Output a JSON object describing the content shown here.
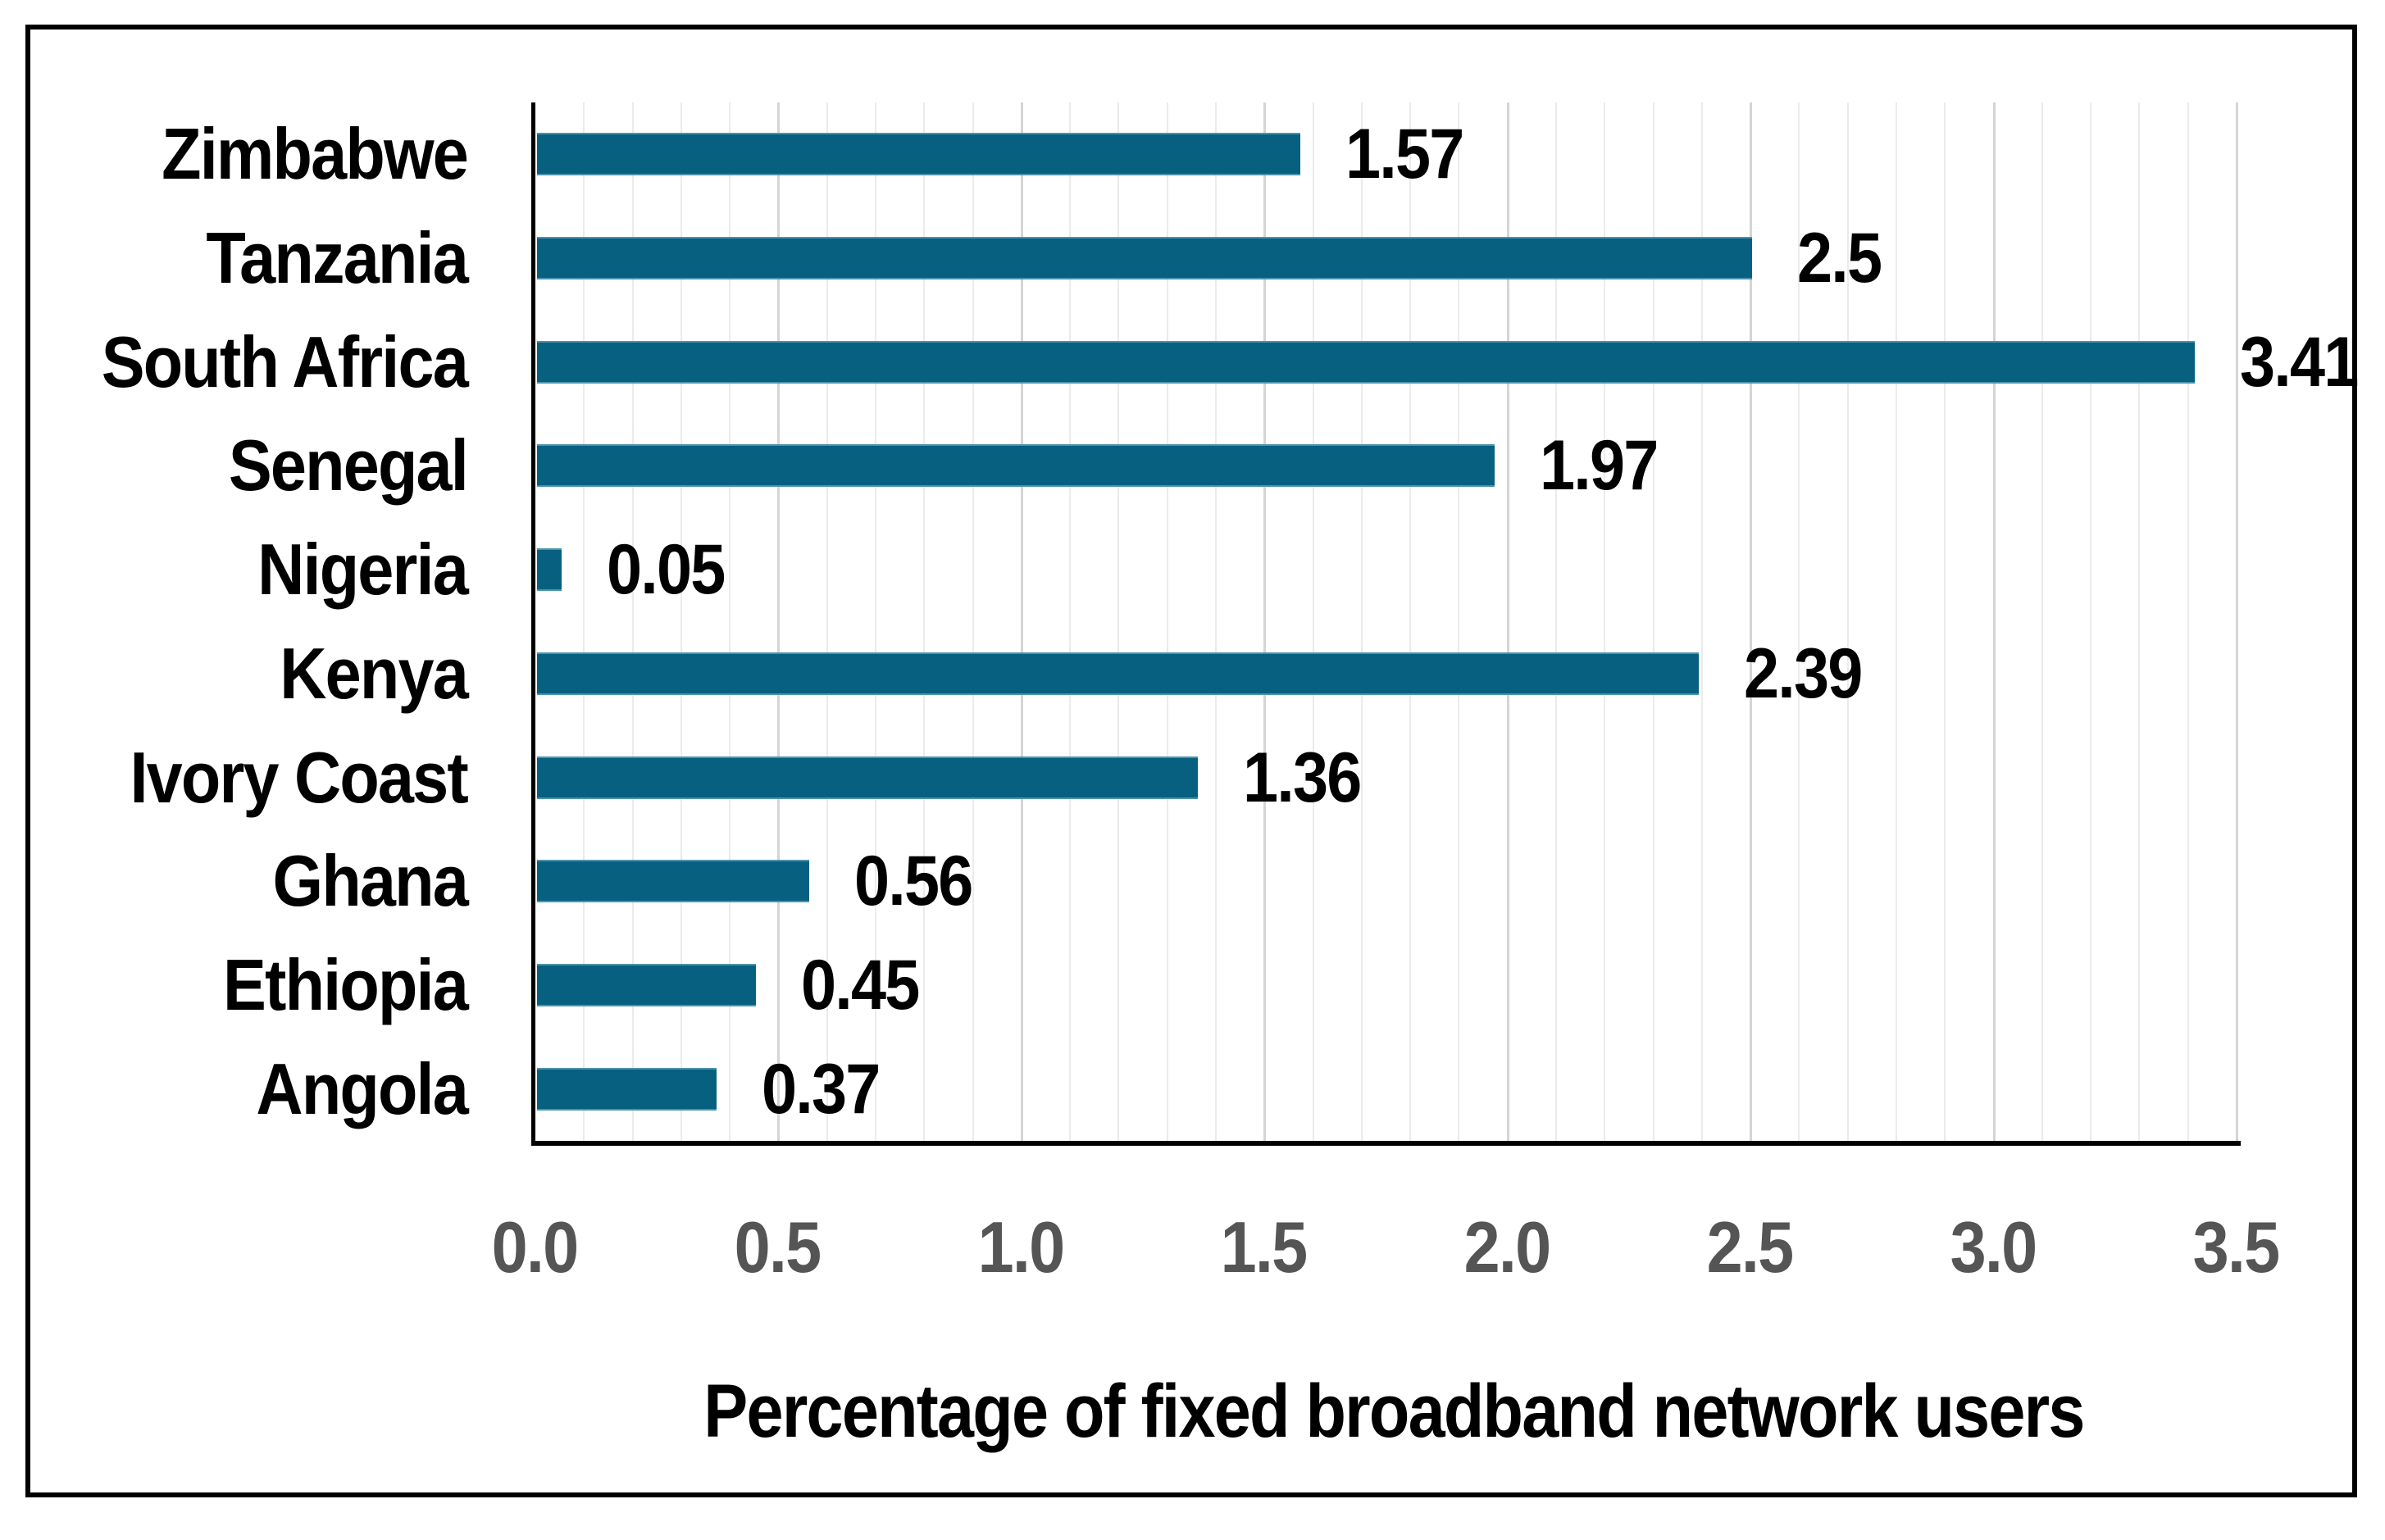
{
  "chart_data": {
    "type": "bar",
    "orientation": "horizontal",
    "title": "",
    "xlabel": "Percentage of fixed broadband network users",
    "ylabel": "",
    "categories": [
      "Zimbabwe",
      "Tanzania",
      "South Africa",
      "Senegal",
      "Nigeria",
      "Kenya",
      "Ivory Coast",
      "Ghana",
      "Ethiopia",
      "Angola"
    ],
    "values": [
      1.57,
      2.5,
      3.41,
      1.97,
      0.05,
      2.39,
      1.36,
      0.56,
      0.45,
      0.37
    ],
    "value_labels": [
      "1.57",
      "2.5",
      "3.41",
      "1.97",
      "0.05",
      "2.39",
      "1.36",
      "0.56",
      "0.45",
      "0.37"
    ],
    "xlim": [
      0,
      3.5
    ],
    "xticks": [
      0,
      0.5,
      1,
      1.5,
      2,
      2.5,
      3,
      3.5
    ],
    "xtick_labels": [
      "0.0",
      "0.5",
      "1.0",
      "1.5",
      "2.0",
      "2.5",
      "3.0",
      "3.5"
    ],
    "grid": {
      "visible": true,
      "minor_step": 0.1,
      "major_step": 0.5
    },
    "legend_position": "none",
    "colors": {
      "bar": "#086080",
      "bar_edge": "#4c93ac",
      "axis": "#000000",
      "tick_label": "#555555",
      "data_label": "#000000",
      "category_label": "#000000",
      "grid_minor": "#ebebeb",
      "grid_major": "#d5d5d5",
      "frame_border": "#000000",
      "background": "#ffffff"
    }
  }
}
